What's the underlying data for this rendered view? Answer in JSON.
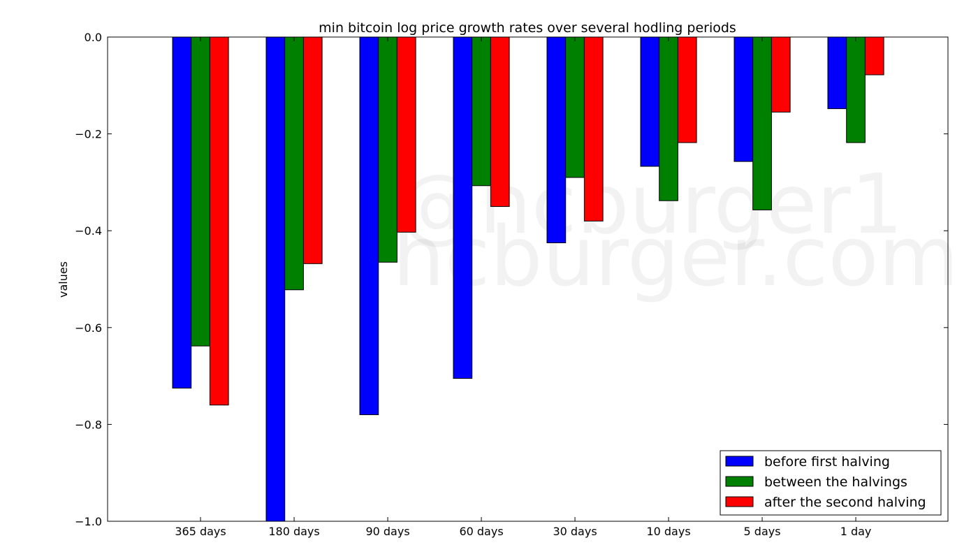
{
  "chart_data": {
    "type": "bar",
    "title": "min bitcoin log price growth rates over several hodling periods",
    "xlabel": "",
    "ylabel": "values",
    "categories": [
      "365 days",
      "180 days",
      "90 days",
      "60 days",
      "30 days",
      "10 days",
      "5 days",
      "1 day"
    ],
    "series": [
      {
        "name": "before first halving",
        "color": "#0000ff",
        "values": [
          -0.725,
          -1.0,
          -0.78,
          -0.705,
          -0.425,
          -0.267,
          -0.257,
          -0.148
        ]
      },
      {
        "name": "between the halvings",
        "color": "#008000",
        "values": [
          -0.638,
          -0.522,
          -0.465,
          -0.307,
          -0.29,
          -0.338,
          -0.357,
          -0.218
        ]
      },
      {
        "name": "after the second halving",
        "color": "#ff0000",
        "values": [
          -0.76,
          -0.468,
          -0.403,
          -0.35,
          -0.38,
          -0.218,
          -0.155,
          -0.078
        ]
      }
    ],
    "ylim": [
      -1.0,
      0.0
    ],
    "yticks": [
      0.0,
      -0.2,
      -0.4,
      -0.6,
      -0.8,
      -1.0
    ],
    "ytick_labels": [
      "0.0",
      "−0.2",
      "−0.4",
      "−0.6",
      "−0.8",
      "−1.0"
    ],
    "grid": false,
    "legend_position": "lower-right",
    "watermark": [
      "@hcburger1",
      "hcburger.com"
    ]
  }
}
